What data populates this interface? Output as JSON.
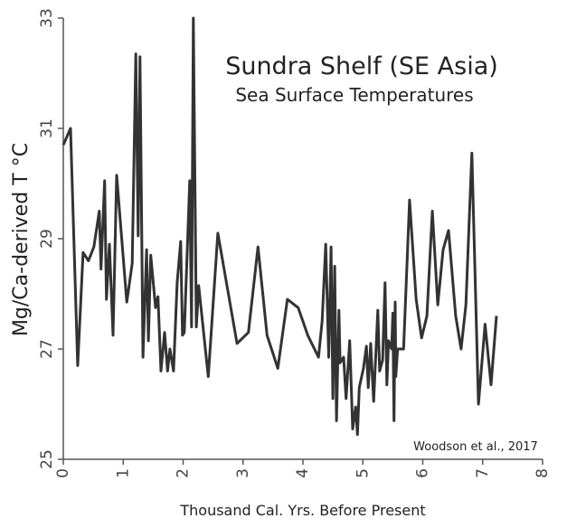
{
  "chart_data": {
    "type": "line",
    "title": "Sundra Shelf (SE Asia)",
    "subtitle": "Sea Surface Temperatures",
    "annotation": "Woodson et al., 2017",
    "x_label": "Thousand Cal. Yrs. Before Present",
    "y_label": "Mg/Ca-derived T °C",
    "xlim": [
      0,
      8
    ],
    "xticks": [
      0,
      1,
      2,
      3,
      4,
      5,
      6,
      7,
      8
    ],
    "ylim": [
      25,
      33
    ],
    "yticks": [
      25,
      27,
      29,
      31,
      33
    ],
    "series": [
      {
        "color": "#333333",
        "x": [
          0,
          0.12,
          0.24,
          0.33,
          0.42,
          0.51,
          0.6,
          0.63,
          0.69,
          0.72,
          0.77,
          0.83,
          0.89,
          1.06,
          1.15,
          1.21,
          1.25,
          1.28,
          1.33,
          1.39,
          1.42,
          1.46,
          1.54,
          1.58,
          1.63,
          1.69,
          1.74,
          1.78,
          1.84,
          1.9,
          1.96,
          1.99,
          2.02,
          2.07,
          2.11,
          2.14,
          2.17,
          2.22,
          2.26,
          2.42,
          2.58,
          2.9,
          3.09,
          3.25,
          3.4,
          3.58,
          3.74,
          3.92,
          4.08,
          4.26,
          4.32,
          4.38,
          4.43,
          4.47,
          4.5,
          4.53,
          4.56,
          4.6,
          4.62,
          4.68,
          4.72,
          4.78,
          4.83,
          4.88,
          4.91,
          4.94,
          5.01,
          5.06,
          5.09,
          5.13,
          5.18,
          5.25,
          5.28,
          5.33,
          5.37,
          5.4,
          5.43,
          5.48,
          5.5,
          5.52,
          5.54,
          5.55,
          5.58,
          5.68,
          5.78,
          5.89,
          5.98,
          6.07,
          6.16,
          6.25,
          6.34,
          6.43,
          6.55,
          6.64,
          6.72,
          6.82,
          6.93,
          7.04,
          7.14,
          7.23
        ],
        "values": [
          30.7,
          31.0,
          26.7,
          28.75,
          28.6,
          28.85,
          29.5,
          28.45,
          30.05,
          27.9,
          28.9,
          27.25,
          30.15,
          27.85,
          28.55,
          32.35,
          29.05,
          32.3,
          26.85,
          28.8,
          27.15,
          28.7,
          27.75,
          27.95,
          26.6,
          27.3,
          26.6,
          27.0,
          26.6,
          28.2,
          28.95,
          27.25,
          27.3,
          28.8,
          30.05,
          27.4,
          33,
          27.4,
          28.15,
          26.5,
          29.1,
          27.1,
          27.3,
          28.85,
          27.25,
          26.65,
          27.9,
          27.75,
          27.25,
          26.85,
          27.5,
          28.9,
          26.85,
          28.85,
          26.1,
          28.5,
          25.7,
          27.7,
          26.75,
          26.85,
          26.1,
          27.15,
          25.55,
          25.95,
          25.45,
          26.3,
          26.65,
          27.05,
          26.3,
          27.1,
          26.05,
          27.7,
          26.6,
          26.8,
          28.2,
          26.35,
          27.15,
          27.0,
          27.65,
          25.7,
          27.85,
          26.5,
          27.0,
          27.0,
          29.7,
          27.9,
          27.2,
          27.6,
          29.5,
          27.8,
          28.8,
          29.15,
          27.6,
          27.0,
          27.8,
          30.55,
          26.0,
          27.45,
          26.35,
          27.6
        ]
      }
    ]
  }
}
